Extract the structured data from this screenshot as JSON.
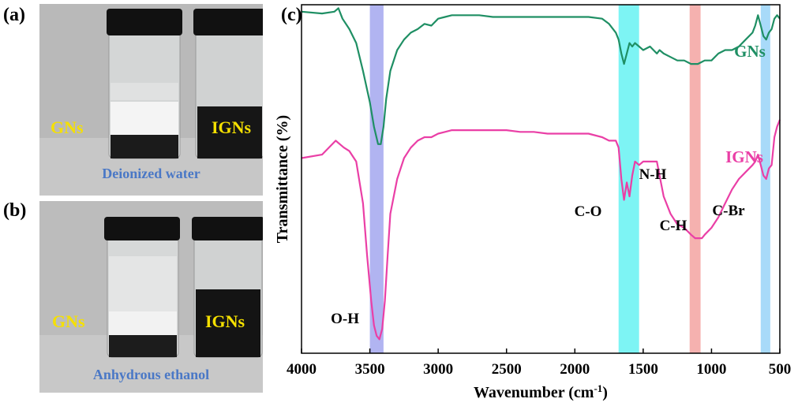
{
  "panels": {
    "a": {
      "label": "(a)",
      "left_sample": "GNs",
      "right_sample": "IGNs",
      "solvent": "Deionized water"
    },
    "b": {
      "label": "(b)",
      "left_sample": "GNs",
      "right_sample": "IGNs",
      "solvent": "Anhydrous ethanol"
    },
    "c": {
      "label": "(c)"
    }
  },
  "chart_data": {
    "type": "line",
    "xlabel": "Wavenumber (cm",
    "xlabel_sup": "-1",
    "xlabel_end": ")",
    "ylabel": "Transmittance (%)",
    "xlim": [
      4000,
      500
    ],
    "x_reversed": true,
    "xticks": [
      4000,
      3500,
      3000,
      2500,
      2000,
      1500,
      1000,
      500
    ],
    "yticks_shown": false,
    "grid": false,
    "colors": {
      "GNs": "#1f8f64",
      "IGNs": "#ea3fa6"
    },
    "series": [
      {
        "name": "GNs",
        "x": [
          4000,
          3850,
          3760,
          3730,
          3700,
          3650,
          3600,
          3550,
          3500,
          3470,
          3440,
          3420,
          3400,
          3380,
          3350,
          3300,
          3250,
          3200,
          3150,
          3100,
          3050,
          3000,
          2950,
          2900,
          2800,
          2700,
          2600,
          2500,
          2400,
          2300,
          2200,
          2100,
          2000,
          1900,
          1800,
          1750,
          1700,
          1680,
          1660,
          1640,
          1620,
          1600,
          1580,
          1560,
          1530,
          1500,
          1450,
          1400,
          1380,
          1350,
          1300,
          1250,
          1200,
          1150,
          1100,
          1050,
          1000,
          950,
          900,
          850,
          800,
          750,
          700,
          680,
          660,
          640,
          620,
          600,
          580,
          560,
          540,
          520,
          500
        ],
        "y": [
          88,
          87.5,
          88,
          89,
          86,
          83,
          79,
          71,
          62,
          55,
          50,
          50,
          55,
          63,
          71,
          77,
          80,
          82,
          83,
          84.5,
          84,
          86,
          86.5,
          87,
          87,
          87,
          86.5,
          86.5,
          86.5,
          86.5,
          86.5,
          86.5,
          86.5,
          86.5,
          86,
          84.5,
          82,
          80,
          76,
          73,
          76,
          79,
          78,
          79,
          78,
          77,
          78,
          76,
          77,
          76,
          75,
          74,
          74,
          73,
          73,
          74,
          74,
          76,
          77,
          77,
          78,
          80,
          82,
          84,
          87,
          84,
          81,
          80,
          82,
          83,
          86,
          87,
          86
        ]
      },
      {
        "name": "IGNs",
        "x": [
          4000,
          3850,
          3750,
          3720,
          3690,
          3650,
          3600,
          3550,
          3520,
          3490,
          3470,
          3450,
          3430,
          3410,
          3390,
          3370,
          3350,
          3300,
          3250,
          3200,
          3150,
          3100,
          3050,
          3000,
          2950,
          2900,
          2800,
          2700,
          2600,
          2500,
          2400,
          2300,
          2200,
          2100,
          2000,
          1900,
          1800,
          1750,
          1700,
          1680,
          1660,
          1640,
          1620,
          1600,
          1580,
          1560,
          1530,
          1500,
          1450,
          1400,
          1380,
          1350,
          1300,
          1250,
          1200,
          1150,
          1120,
          1100,
          1070,
          1050,
          1000,
          950,
          900,
          850,
          800,
          750,
          700,
          680,
          660,
          640,
          620,
          600,
          580,
          560,
          540,
          520,
          500
        ],
        "y": [
          46,
          47,
          51,
          50,
          49,
          48,
          45,
          33,
          18,
          5,
          -2,
          -5,
          -6,
          -3,
          5,
          18,
          30,
          40,
          46,
          49,
          51,
          52,
          52,
          53,
          53.5,
          54,
          54,
          54,
          54,
          54,
          53.5,
          53.5,
          53,
          53,
          53,
          53,
          52,
          51,
          51,
          49,
          40,
          34,
          39,
          35,
          41,
          45,
          44,
          45,
          45,
          45,
          41,
          35,
          30,
          27,
          26,
          24,
          23,
          23,
          23,
          24,
          26,
          29,
          33,
          37,
          40,
          42,
          44,
          45,
          47,
          44,
          41,
          40,
          43,
          44,
          52,
          55,
          57
        ]
      }
    ],
    "highlight_bands": [
      {
        "from": 3500,
        "to": 3400,
        "color": "#a9acf0"
      },
      {
        "from": 1680,
        "to": 1530,
        "color": "#6ff3f3"
      },
      {
        "from": 1160,
        "to": 1080,
        "color": "#f4a9a6"
      },
      {
        "from": 640,
        "to": 570,
        "color": "#9fd6f8"
      }
    ],
    "annotations": [
      {
        "text": "GNs",
        "color": "#1f8f64"
      },
      {
        "text": "IGNs",
        "color": "#ea3fa6"
      },
      {
        "text": "O-H",
        "color": "#000000"
      },
      {
        "text": "C-O",
        "color": "#000000"
      },
      {
        "text": "N-H",
        "color": "#000000"
      },
      {
        "text": "C-H",
        "color": "#000000"
      },
      {
        "text": "C-Br",
        "color": "#000000"
      }
    ]
  }
}
